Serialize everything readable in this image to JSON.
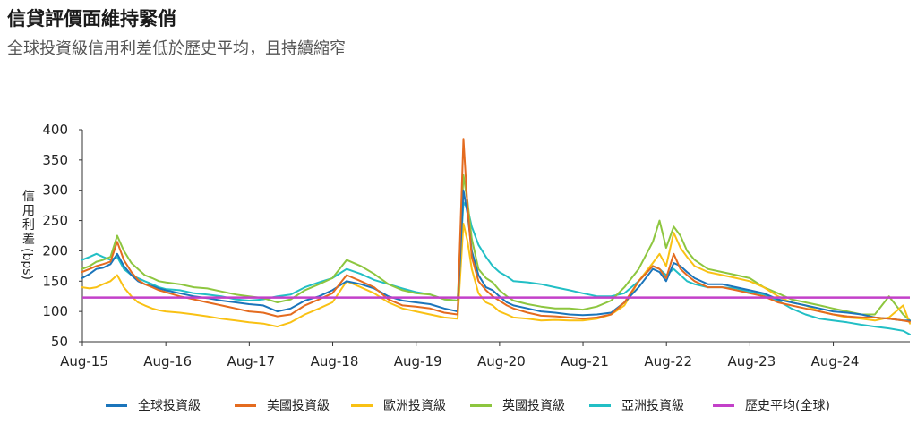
{
  "title": "信貸評價面維持緊俏",
  "subtitle": "全球投資級信用利差低於歷史平均，且持續縮窄",
  "chart_data": {
    "type": "line",
    "ylabel_chars": [
      "信",
      "用",
      "利",
      "差"
    ],
    "ylabel_unit": "(bps)",
    "ylim": [
      50,
      400
    ],
    "yticks": [
      50,
      100,
      150,
      200,
      250,
      300,
      350,
      400
    ],
    "xlim": [
      2015.583,
      2025.5
    ],
    "xtick_labels": [
      "Aug-15",
      "Aug-16",
      "Aug-17",
      "Aug-18",
      "Aug-19",
      "Aug-20",
      "Aug-21",
      "Aug-22",
      "Aug-23",
      "Aug-24"
    ],
    "xtick_values": [
      2015.583,
      2016.583,
      2017.583,
      2018.583,
      2019.583,
      2020.583,
      2021.583,
      2022.583,
      2023.583,
      2024.583
    ],
    "grid": false,
    "legend_position": "bottom",
    "x": [
      2015.58,
      2015.67,
      2015.75,
      2015.83,
      2015.92,
      2016.0,
      2016.08,
      2016.17,
      2016.25,
      2016.33,
      2016.42,
      2016.5,
      2016.58,
      2016.75,
      2016.92,
      2017.08,
      2017.25,
      2017.42,
      2017.58,
      2017.75,
      2017.92,
      2018.08,
      2018.25,
      2018.42,
      2018.58,
      2018.75,
      2018.92,
      2019.08,
      2019.25,
      2019.42,
      2019.58,
      2019.75,
      2019.92,
      2020.08,
      2020.15,
      2020.2,
      2020.25,
      2020.33,
      2020.42,
      2020.5,
      2020.58,
      2020.67,
      2020.75,
      2020.92,
      2021.08,
      2021.25,
      2021.42,
      2021.58,
      2021.75,
      2021.92,
      2022.08,
      2022.25,
      2022.42,
      2022.5,
      2022.58,
      2022.67,
      2022.75,
      2022.83,
      2022.92,
      2023.08,
      2023.25,
      2023.42,
      2023.58,
      2023.75,
      2023.92,
      2024.08,
      2024.25,
      2024.42,
      2024.58,
      2024.75,
      2024.92,
      2025.08,
      2025.25,
      2025.42,
      2025.5
    ],
    "series": [
      {
        "name": "全球投資級",
        "color": "#1b75bb",
        "values": [
          155,
          162,
          170,
          172,
          178,
          195,
          175,
          160,
          150,
          145,
          142,
          138,
          135,
          130,
          125,
          122,
          118,
          115,
          112,
          110,
          100,
          105,
          118,
          125,
          135,
          150,
          145,
          138,
          125,
          118,
          115,
          112,
          105,
          100,
          300,
          260,
          200,
          160,
          140,
          135,
          125,
          115,
          110,
          105,
          100,
          98,
          95,
          94,
          95,
          98,
          115,
          140,
          170,
          165,
          150,
          180,
          175,
          165,
          155,
          145,
          145,
          140,
          135,
          130,
          120,
          115,
          110,
          105,
          100,
          98,
          95,
          90,
          88,
          85,
          85
        ]
      },
      {
        "name": "美國投資級",
        "color": "#e46b1f",
        "values": [
          165,
          170,
          175,
          178,
          182,
          215,
          185,
          165,
          152,
          145,
          140,
          135,
          132,
          125,
          120,
          115,
          110,
          105,
          100,
          98,
          92,
          95,
          110,
          120,
          130,
          160,
          150,
          140,
          120,
          110,
          108,
          105,
          98,
          95,
          385,
          270,
          190,
          150,
          135,
          125,
          118,
          110,
          105,
          98,
          93,
          92,
          90,
          88,
          90,
          95,
          115,
          150,
          175,
          170,
          155,
          195,
          170,
          160,
          150,
          140,
          140,
          135,
          130,
          125,
          115,
          110,
          105,
          100,
          95,
          92,
          90,
          90,
          88,
          85,
          83
        ]
      },
      {
        "name": "歐洲投資級",
        "color": "#f9c114",
        "values": [
          140,
          138,
          140,
          145,
          150,
          160,
          140,
          125,
          115,
          110,
          105,
          102,
          100,
          98,
          95,
          92,
          88,
          85,
          82,
          80,
          75,
          82,
          95,
          105,
          115,
          150,
          140,
          130,
          115,
          105,
          100,
          95,
          90,
          88,
          245,
          215,
          170,
          130,
          115,
          110,
          100,
          95,
          90,
          88,
          85,
          86,
          85,
          85,
          88,
          95,
          110,
          150,
          180,
          195,
          175,
          230,
          205,
          190,
          175,
          165,
          160,
          155,
          150,
          140,
          125,
          115,
          110,
          100,
          95,
          90,
          88,
          85,
          90,
          110,
          80
        ]
      },
      {
        "name": "英國投資級",
        "color": "#8dc63f",
        "values": [
          170,
          175,
          182,
          185,
          190,
          225,
          200,
          180,
          170,
          160,
          155,
          150,
          148,
          145,
          140,
          138,
          133,
          128,
          125,
          122,
          115,
          120,
          135,
          145,
          155,
          185,
          175,
          162,
          145,
          135,
          130,
          128,
          120,
          118,
          325,
          280,
          220,
          170,
          155,
          148,
          135,
          125,
          118,
          112,
          108,
          105,
          105,
          103,
          108,
          118,
          140,
          170,
          215,
          250,
          205,
          240,
          225,
          200,
          185,
          170,
          165,
          160,
          155,
          140,
          130,
          120,
          115,
          110,
          105,
          100,
          95,
          95,
          125,
          95,
          85
        ]
      },
      {
        "name": "亞洲投資級",
        "color": "#22bfc5",
        "values": [
          185,
          190,
          195,
          190,
          185,
          190,
          170,
          160,
          155,
          150,
          145,
          140,
          137,
          135,
          130,
          128,
          125,
          120,
          118,
          120,
          125,
          128,
          140,
          148,
          155,
          170,
          162,
          152,
          145,
          138,
          132,
          128,
          120,
          118,
          280,
          270,
          240,
          210,
          190,
          175,
          165,
          158,
          150,
          148,
          145,
          140,
          135,
          130,
          125,
          125,
          130,
          150,
          175,
          170,
          160,
          170,
          160,
          150,
          145,
          140,
          140,
          138,
          132,
          128,
          118,
          105,
          95,
          88,
          85,
          82,
          78,
          75,
          72,
          68,
          62
        ]
      },
      {
        "name": "歷史平均(全球)",
        "color": "#c340c9",
        "constant": 123
      }
    ]
  }
}
